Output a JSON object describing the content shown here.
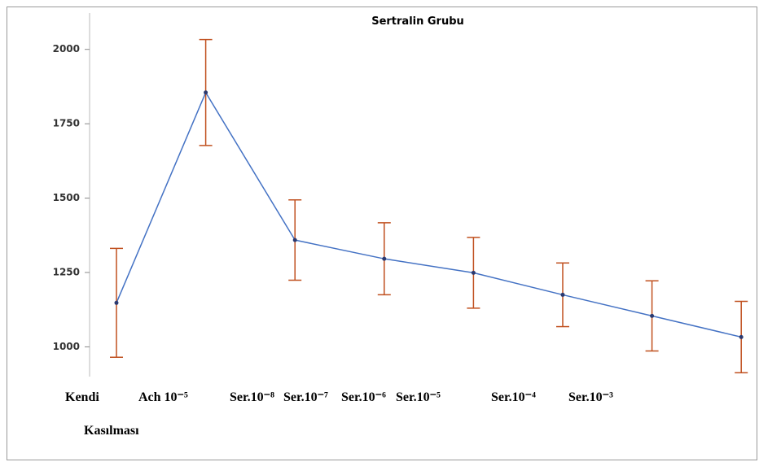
{
  "chart_data": {
    "type": "line",
    "title": "Sertralin Grubu",
    "categories": [
      "Kendi Kasılması",
      "Ach 10⁻⁵",
      "Ser.10⁻⁸",
      "Ser.10⁻⁷",
      "Ser.10⁻⁶",
      "Ser.10⁻⁵",
      "Ser.10⁻⁴",
      "Ser.10⁻³"
    ],
    "series": [
      {
        "color": "#4472c4",
        "error_color": "#c0501f",
        "values": [
          1148,
          1855,
          1359,
          1296,
          1249,
          1175,
          1104,
          1033
        ],
        "errors": [
          183,
          178,
          135,
          121,
          119,
          107,
          118,
          120
        ]
      }
    ],
    "ylim": [
      900,
      2125
    ],
    "yticks": [
      1000,
      1250,
      1500,
      1750,
      2000
    ]
  }
}
